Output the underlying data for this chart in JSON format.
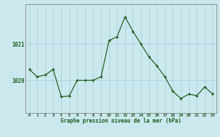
{
  "x": [
    0,
    1,
    2,
    3,
    4,
    5,
    6,
    7,
    8,
    9,
    10,
    11,
    12,
    13,
    14,
    15,
    16,
    17,
    18,
    19,
    20,
    21,
    22,
    23
  ],
  "y": [
    1020.3,
    1020.1,
    1020.15,
    1020.3,
    1019.55,
    1019.57,
    1020.0,
    1020.0,
    1020.0,
    1020.1,
    1021.1,
    1021.2,
    1021.75,
    1021.35,
    1021.0,
    1020.65,
    1020.4,
    1020.1,
    1019.7,
    1019.5,
    1019.62,
    1019.58,
    1019.82,
    1019.62
  ],
  "line_color": "#1a5c1a",
  "marker_color": "#1a5c1a",
  "bg_color": "#cce8ef",
  "grid_color": "#aacdd6",
  "axis_color": "#808080",
  "xlabel": "Graphe pression niveau de la mer (hPa)",
  "xlabel_color": "#1a5c1a",
  "tick_color": "#1a5c1a",
  "ytick_labels": [
    1020,
    1021
  ],
  "ylim": [
    1019.1,
    1022.1
  ],
  "xlim": [
    -0.5,
    23.5
  ],
  "figsize": [
    3.2,
    2.0
  ],
  "dpi": 100
}
